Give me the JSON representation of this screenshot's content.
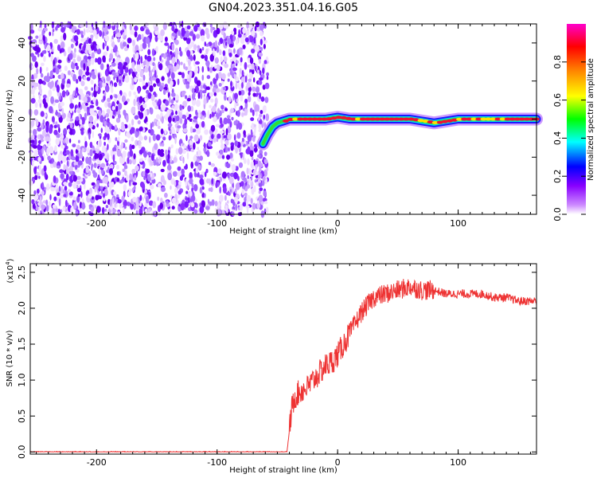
{
  "title": "GN04.2023.351.04.16.G05",
  "chart_data": [
    {
      "type": "heatmap",
      "xlabel": "Height of straight line (km)",
      "ylabel": "Frequency (Hz)",
      "xlim": [
        -255,
        165
      ],
      "ylim": [
        -50,
        50
      ],
      "x_ticks": [
        -200,
        -100,
        0,
        100
      ],
      "y_ticks": [
        -40,
        -20,
        0,
        20,
        40
      ],
      "x_tick_labels": [
        "-200",
        "-100",
        "0",
        "100"
      ],
      "y_tick_labels": [
        "-40",
        "-20",
        "0",
        "20",
        "40"
      ],
      "noise_region_x": [
        -255,
        -58
      ],
      "signal_trace": {
        "x": [
          -62,
          -58,
          -54,
          -50,
          -45,
          -40,
          -30,
          -20,
          -10,
          0,
          10,
          20,
          30,
          40,
          60,
          80,
          100,
          120,
          140,
          165
        ],
        "frequency": [
          -13,
          -8,
          -4,
          -2,
          -1,
          0,
          0,
          0,
          0,
          1,
          0,
          0,
          0,
          0,
          0,
          -2,
          0,
          0,
          0,
          0
        ]
      },
      "colorbar": {
        "label": "Normalized spectral amplitude",
        "range": [
          0,
          1
        ],
        "ticks": [
          0.0,
          0.2,
          0.4,
          0.6,
          0.8
        ],
        "tick_labels": [
          "0.0",
          "0.2",
          "0.4",
          "0.6",
          "0.8"
        ],
        "colors": [
          "#ffffff",
          "#8800ff",
          "#0000ff",
          "#00ffff",
          "#00ff00",
          "#ffff00",
          "#ff8800",
          "#ff0000",
          "#ff00cc"
        ]
      }
    },
    {
      "type": "line",
      "xlabel": "Height of straight line (km)",
      "ylabel": "SNR (10 * v/v)",
      "y_multiplier": "(x10",
      "y_multiplier_exp": "4",
      "y_multiplier_close": ")",
      "xlim": [
        -255,
        165
      ],
      "ylim": [
        -0.03,
        2.62
      ],
      "x_ticks": [
        -200,
        -100,
        0,
        100
      ],
      "y_ticks": [
        0.0,
        0.5,
        1.0,
        1.5,
        2.0,
        2.5
      ],
      "x_tick_labels": [
        "-200",
        "-100",
        "0",
        "100"
      ],
      "y_tick_labels": [
        "0.0",
        "0.5",
        "1.0",
        "1.5",
        "2.0",
        "2.5"
      ],
      "line_color": "#ee3333",
      "series": [
        {
          "x": [
            -255,
            -200,
            -150,
            -100,
            -50,
            -42,
            -40,
            -38,
            -36,
            -34,
            -30,
            -25,
            -20,
            -15,
            -10,
            -5,
            0,
            5,
            10,
            15,
            20,
            25,
            30,
            40,
            50,
            60,
            70,
            80,
            90,
            100,
            110,
            120,
            130,
            140,
            150,
            160,
            165
          ],
          "values": [
            0.0,
            0.0,
            0.0,
            0.0,
            0.0,
            0.0,
            0.3,
            0.6,
            0.75,
            0.8,
            0.85,
            0.9,
            1.0,
            1.1,
            1.2,
            1.25,
            1.35,
            1.5,
            1.65,
            1.8,
            1.95,
            2.05,
            2.15,
            2.2,
            2.25,
            2.3,
            2.25,
            2.25,
            2.2,
            2.2,
            2.2,
            2.2,
            2.15,
            2.15,
            2.1,
            2.1,
            2.1
          ]
        }
      ]
    }
  ]
}
